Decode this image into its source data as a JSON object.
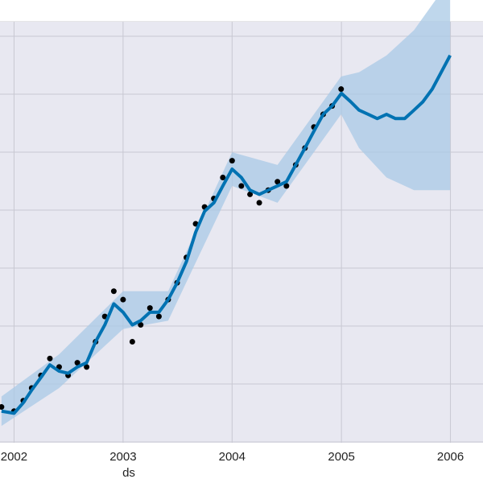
{
  "window": {
    "top_bar_present": true
  },
  "colors": {
    "plot_background": "#e8e8f1",
    "grid": "#c8c8d2",
    "forecast_line": "#0072b2",
    "uncertainty_band": "#a9c9e6",
    "observations": "#000000"
  },
  "chart_data": {
    "type": "line",
    "title": "",
    "xlabel": "ds",
    "ylabel": "",
    "x_ticks": [
      "2002",
      "2003",
      "2004",
      "2005",
      "2006"
    ],
    "xlim": [
      "2001-11-15",
      "2006-04-20"
    ],
    "ylim": [
      0,
      1
    ],
    "y_scale_note": "y tick labels not visible in screenshot; y values are relative (0-1)",
    "grid": true,
    "legend": "none",
    "series": [
      {
        "role": "observations",
        "style": "points",
        "x": [
          "2001-11-20",
          "2002-01-01",
          "2002-02-01",
          "2002-03-01",
          "2002-04-01",
          "2002-05-01",
          "2002-06-01",
          "2002-07-01",
          "2002-08-01",
          "2002-09-01",
          "2002-10-01",
          "2002-11-01",
          "2002-12-01",
          "2003-01-01",
          "2003-02-01",
          "2003-03-01",
          "2003-04-01",
          "2003-05-01",
          "2003-06-01",
          "2003-07-01",
          "2003-08-01",
          "2003-09-01",
          "2003-10-01",
          "2003-11-01",
          "2003-12-01",
          "2004-01-01",
          "2004-02-01",
          "2004-03-01",
          "2004-04-01",
          "2004-05-01",
          "2004-06-01",
          "2004-07-01",
          "2004-08-01",
          "2004-09-01",
          "2004-10-01",
          "2004-11-01",
          "2004-12-01",
          "2004-12-31"
        ],
        "y": [
          0.085,
          0.075,
          0.1,
          0.13,
          0.16,
          0.2,
          0.18,
          0.16,
          0.19,
          0.18,
          0.24,
          0.3,
          0.36,
          0.34,
          0.24,
          0.28,
          0.32,
          0.3,
          0.34,
          0.38,
          0.44,
          0.52,
          0.56,
          0.58,
          0.63,
          0.67,
          0.61,
          0.59,
          0.57,
          0.6,
          0.62,
          0.61,
          0.66,
          0.7,
          0.75,
          0.78,
          0.8,
          0.84
        ]
      },
      {
        "role": "forecast",
        "style": "line",
        "x": [
          "2001-11-20",
          "2002-01-01",
          "2002-02-01",
          "2002-03-01",
          "2002-04-01",
          "2002-05-01",
          "2002-06-01",
          "2002-07-01",
          "2002-08-01",
          "2002-09-01",
          "2002-10-01",
          "2002-11-01",
          "2002-12-01",
          "2003-01-01",
          "2003-02-01",
          "2003-03-01",
          "2003-04-01",
          "2003-05-01",
          "2003-06-01",
          "2003-07-01",
          "2003-08-01",
          "2003-09-01",
          "2003-10-01",
          "2003-11-01",
          "2003-12-01",
          "2004-01-01",
          "2004-02-01",
          "2004-03-01",
          "2004-04-01",
          "2004-05-01",
          "2004-06-01",
          "2004-07-01",
          "2004-08-01",
          "2004-09-01",
          "2004-10-01",
          "2004-11-01",
          "2004-12-01",
          "2005-01-01",
          "2005-02-01",
          "2005-03-01",
          "2005-04-01",
          "2005-05-01",
          "2005-06-01",
          "2005-07-01",
          "2005-08-01",
          "2005-09-01",
          "2005-10-01",
          "2005-11-01",
          "2005-12-01",
          "2005-12-31"
        ],
        "y": [
          0.075,
          0.07,
          0.095,
          0.125,
          0.155,
          0.185,
          0.17,
          0.165,
          0.18,
          0.19,
          0.24,
          0.28,
          0.33,
          0.31,
          0.28,
          0.29,
          0.31,
          0.31,
          0.34,
          0.38,
          0.43,
          0.5,
          0.55,
          0.57,
          0.61,
          0.65,
          0.63,
          0.6,
          0.59,
          0.6,
          0.61,
          0.62,
          0.66,
          0.7,
          0.74,
          0.78,
          0.8,
          0.83,
          0.81,
          0.79,
          0.78,
          0.77,
          0.78,
          0.77,
          0.77,
          0.79,
          0.81,
          0.84,
          0.88,
          0.92
        ]
      },
      {
        "role": "uncertainty",
        "style": "band",
        "x": [
          "2001-11-20",
          "2002-06-01",
          "2003-01-01",
          "2003-06-01",
          "2004-01-01",
          "2004-06-01",
          "2004-12-31",
          "2005-03-01",
          "2005-06-01",
          "2005-09-01",
          "2005-12-31"
        ],
        "lower": [
          0.04,
          0.13,
          0.27,
          0.29,
          0.61,
          0.57,
          0.78,
          0.7,
          0.63,
          0.6,
          0.6
        ],
        "upper": [
          0.11,
          0.21,
          0.36,
          0.36,
          0.69,
          0.66,
          0.87,
          0.88,
          0.92,
          0.98,
          1.1
        ]
      }
    ]
  }
}
